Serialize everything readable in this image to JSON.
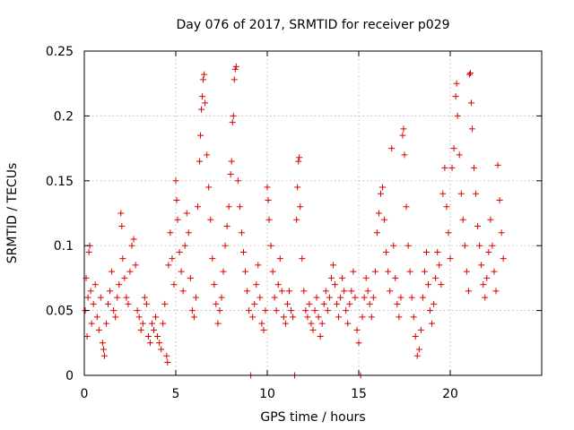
{
  "chart_data": {
    "type": "scatter",
    "title": "Day 076 of 2017, SRMTID for receiver p029",
    "xlabel": "GPS time / hours",
    "ylabel": "SRMTID / TECUs",
    "xlim": [
      0,
      25
    ],
    "ylim": [
      0,
      0.25
    ],
    "x_ticks": [
      0,
      5,
      10,
      15,
      20
    ],
    "x_tick_labels": [
      "0",
      "5",
      "10",
      "15",
      "20"
    ],
    "y_ticks": [
      0,
      0.05,
      0.1,
      0.15,
      0.2,
      0.25
    ],
    "y_tick_labels": [
      "0",
      "0.05",
      "0.1",
      "0.15",
      "0.2",
      "0.25"
    ],
    "grid": true,
    "marker": "+",
    "series": [
      {
        "name": "p029",
        "color": "#dd0000",
        "points": [
          [
            0.05,
            0.05
          ],
          [
            0.1,
            0.075
          ],
          [
            0.15,
            0.03
          ],
          [
            0.2,
            0.06
          ],
          [
            0.25,
            0.095
          ],
          [
            0.3,
            0.1
          ],
          [
            0.35,
            0.065
          ],
          [
            0.4,
            0.04
          ],
          [
            0.5,
            0.055
          ],
          [
            0.6,
            0.07
          ],
          [
            0.7,
            0.045
          ],
          [
            0.8,
            0.035
          ],
          [
            0.9,
            0.06
          ],
          [
            1.0,
            0.025
          ],
          [
            1.05,
            0.02
          ],
          [
            1.1,
            0.015
          ],
          [
            1.2,
            0.04
          ],
          [
            1.3,
            0.055
          ],
          [
            1.4,
            0.065
          ],
          [
            1.5,
            0.08
          ],
          [
            1.6,
            0.05
          ],
          [
            1.7,
            0.045
          ],
          [
            1.8,
            0.06
          ],
          [
            1.9,
            0.07
          ],
          [
            2.0,
            0.125
          ],
          [
            2.05,
            0.115
          ],
          [
            2.1,
            0.09
          ],
          [
            2.2,
            0.075
          ],
          [
            2.3,
            0.06
          ],
          [
            2.4,
            0.055
          ],
          [
            2.5,
            0.08
          ],
          [
            2.6,
            0.1
          ],
          [
            2.7,
            0.105
          ],
          [
            2.8,
            0.085
          ],
          [
            2.9,
            0.05
          ],
          [
            3.0,
            0.045
          ],
          [
            3.1,
            0.035
          ],
          [
            3.2,
            0.04
          ],
          [
            3.3,
            0.06
          ],
          [
            3.4,
            0.055
          ],
          [
            3.5,
            0.03
          ],
          [
            3.6,
            0.025
          ],
          [
            3.7,
            0.04
          ],
          [
            3.8,
            0.035
          ],
          [
            3.9,
            0.045
          ],
          [
            4.0,
            0.03
          ],
          [
            4.1,
            0.025
          ],
          [
            4.2,
            0.02
          ],
          [
            4.3,
            0.04
          ],
          [
            4.4,
            0.055
          ],
          [
            4.5,
            0.015
          ],
          [
            4.55,
            0.01
          ],
          [
            4.6,
            0.085
          ],
          [
            4.7,
            0.11
          ],
          [
            4.8,
            0.09
          ],
          [
            4.9,
            0.07
          ],
          [
            5.0,
            0.15
          ],
          [
            5.05,
            0.135
          ],
          [
            5.1,
            0.12
          ],
          [
            5.2,
            0.095
          ],
          [
            5.3,
            0.08
          ],
          [
            5.4,
            0.065
          ],
          [
            5.5,
            0.1
          ],
          [
            5.6,
            0.125
          ],
          [
            5.7,
            0.11
          ],
          [
            5.8,
            0.075
          ],
          [
            5.9,
            0.05
          ],
          [
            6.0,
            0.045
          ],
          [
            6.1,
            0.06
          ],
          [
            6.2,
            0.13
          ],
          [
            6.3,
            0.165
          ],
          [
            6.35,
            0.185
          ],
          [
            6.4,
            0.205
          ],
          [
            6.45,
            0.215
          ],
          [
            6.5,
            0.228
          ],
          [
            6.55,
            0.232
          ],
          [
            6.6,
            0.21
          ],
          [
            6.7,
            0.17
          ],
          [
            6.8,
            0.145
          ],
          [
            6.9,
            0.12
          ],
          [
            7.0,
            0.09
          ],
          [
            7.1,
            0.07
          ],
          [
            7.2,
            0.055
          ],
          [
            7.3,
            0.04
          ],
          [
            7.4,
            0.05
          ],
          [
            7.5,
            0.06
          ],
          [
            7.6,
            0.08
          ],
          [
            7.7,
            0.1
          ],
          [
            7.8,
            0.115
          ],
          [
            7.9,
            0.13
          ],
          [
            8.0,
            0.155
          ],
          [
            8.05,
            0.165
          ],
          [
            8.1,
            0.195
          ],
          [
            8.15,
            0.2
          ],
          [
            8.2,
            0.228
          ],
          [
            8.25,
            0.236
          ],
          [
            8.3,
            0.238
          ],
          [
            8.4,
            0.15
          ],
          [
            8.5,
            0.13
          ],
          [
            8.6,
            0.11
          ],
          [
            8.7,
            0.095
          ],
          [
            8.8,
            0.08
          ],
          [
            8.9,
            0.065
          ],
          [
            9.0,
            0.05
          ],
          [
            9.1,
            0.0
          ],
          [
            9.2,
            0.045
          ],
          [
            9.3,
            0.055
          ],
          [
            9.4,
            0.07
          ],
          [
            9.5,
            0.085
          ],
          [
            9.6,
            0.06
          ],
          [
            9.7,
            0.04
          ],
          [
            9.8,
            0.035
          ],
          [
            9.9,
            0.05
          ],
          [
            10.0,
            0.145
          ],
          [
            10.05,
            0.135
          ],
          [
            10.1,
            0.12
          ],
          [
            10.2,
            0.1
          ],
          [
            10.3,
            0.08
          ],
          [
            10.4,
            0.06
          ],
          [
            10.5,
            0.05
          ],
          [
            10.6,
            0.07
          ],
          [
            10.7,
            0.09
          ],
          [
            10.8,
            0.065
          ],
          [
            10.9,
            0.045
          ],
          [
            11.0,
            0.04
          ],
          [
            11.1,
            0.055
          ],
          [
            11.2,
            0.065
          ],
          [
            11.3,
            0.05
          ],
          [
            11.4,
            0.045
          ],
          [
            11.5,
            0.0
          ],
          [
            11.6,
            0.12
          ],
          [
            11.65,
            0.145
          ],
          [
            11.7,
            0.165
          ],
          [
            11.75,
            0.168
          ],
          [
            11.8,
            0.13
          ],
          [
            11.9,
            0.09
          ],
          [
            12.0,
            0.065
          ],
          [
            12.1,
            0.05
          ],
          [
            12.2,
            0.045
          ],
          [
            12.3,
            0.055
          ],
          [
            12.4,
            0.04
          ],
          [
            12.5,
            0.035
          ],
          [
            12.6,
            0.05
          ],
          [
            12.7,
            0.06
          ],
          [
            12.8,
            0.045
          ],
          [
            12.9,
            0.03
          ],
          [
            13.0,
            0.04
          ],
          [
            13.1,
            0.055
          ],
          [
            13.2,
            0.065
          ],
          [
            13.3,
            0.05
          ],
          [
            13.4,
            0.06
          ],
          [
            13.5,
            0.075
          ],
          [
            13.6,
            0.085
          ],
          [
            13.7,
            0.07
          ],
          [
            13.8,
            0.055
          ],
          [
            13.9,
            0.045
          ],
          [
            14.0,
            0.06
          ],
          [
            14.1,
            0.075
          ],
          [
            14.2,
            0.065
          ],
          [
            14.3,
            0.05
          ],
          [
            14.4,
            0.04
          ],
          [
            14.5,
            0.055
          ],
          [
            14.6,
            0.065
          ],
          [
            14.7,
            0.08
          ],
          [
            14.8,
            0.06
          ],
          [
            14.9,
            0.035
          ],
          [
            15.0,
            0.025
          ],
          [
            15.1,
            0.0
          ],
          [
            15.2,
            0.045
          ],
          [
            15.3,
            0.06
          ],
          [
            15.4,
            0.075
          ],
          [
            15.5,
            0.065
          ],
          [
            15.6,
            0.055
          ],
          [
            15.7,
            0.045
          ],
          [
            15.8,
            0.06
          ],
          [
            15.9,
            0.08
          ],
          [
            16.0,
            0.11
          ],
          [
            16.1,
            0.125
          ],
          [
            16.2,
            0.14
          ],
          [
            16.3,
            0.145
          ],
          [
            16.4,
            0.12
          ],
          [
            16.5,
            0.095
          ],
          [
            16.6,
            0.08
          ],
          [
            16.7,
            0.065
          ],
          [
            16.8,
            0.175
          ],
          [
            16.9,
            0.1
          ],
          [
            17.0,
            0.075
          ],
          [
            17.1,
            0.055
          ],
          [
            17.2,
            0.045
          ],
          [
            17.3,
            0.06
          ],
          [
            17.4,
            0.185
          ],
          [
            17.45,
            0.19
          ],
          [
            17.5,
            0.17
          ],
          [
            17.6,
            0.13
          ],
          [
            17.7,
            0.1
          ],
          [
            17.8,
            0.08
          ],
          [
            17.9,
            0.06
          ],
          [
            18.0,
            0.045
          ],
          [
            18.1,
            0.03
          ],
          [
            18.2,
            0.015
          ],
          [
            18.3,
            0.02
          ],
          [
            18.4,
            0.035
          ],
          [
            18.5,
            0.06
          ],
          [
            18.6,
            0.08
          ],
          [
            18.7,
            0.095
          ],
          [
            18.8,
            0.07
          ],
          [
            18.9,
            0.05
          ],
          [
            19.0,
            0.04
          ],
          [
            19.1,
            0.055
          ],
          [
            19.2,
            0.075
          ],
          [
            19.3,
            0.095
          ],
          [
            19.4,
            0.085
          ],
          [
            19.5,
            0.07
          ],
          [
            19.6,
            0.14
          ],
          [
            19.7,
            0.16
          ],
          [
            19.8,
            0.13
          ],
          [
            19.9,
            0.11
          ],
          [
            20.0,
            0.09
          ],
          [
            20.1,
            0.16
          ],
          [
            20.2,
            0.175
          ],
          [
            20.3,
            0.215
          ],
          [
            20.35,
            0.225
          ],
          [
            20.4,
            0.2
          ],
          [
            20.5,
            0.17
          ],
          [
            20.6,
            0.14
          ],
          [
            20.7,
            0.12
          ],
          [
            20.8,
            0.1
          ],
          [
            20.9,
            0.08
          ],
          [
            21.0,
            0.065
          ],
          [
            21.05,
            0.232
          ],
          [
            21.1,
            0.233
          ],
          [
            21.15,
            0.21
          ],
          [
            21.2,
            0.19
          ],
          [
            21.3,
            0.16
          ],
          [
            21.4,
            0.14
          ],
          [
            21.5,
            0.115
          ],
          [
            21.6,
            0.1
          ],
          [
            21.7,
            0.085
          ],
          [
            21.8,
            0.07
          ],
          [
            21.9,
            0.06
          ],
          [
            22.0,
            0.075
          ],
          [
            22.1,
            0.095
          ],
          [
            22.2,
            0.12
          ],
          [
            22.3,
            0.1
          ],
          [
            22.4,
            0.08
          ],
          [
            22.5,
            0.065
          ],
          [
            22.6,
            0.162
          ],
          [
            22.7,
            0.135
          ],
          [
            22.8,
            0.11
          ],
          [
            22.9,
            0.09
          ]
        ]
      }
    ]
  }
}
